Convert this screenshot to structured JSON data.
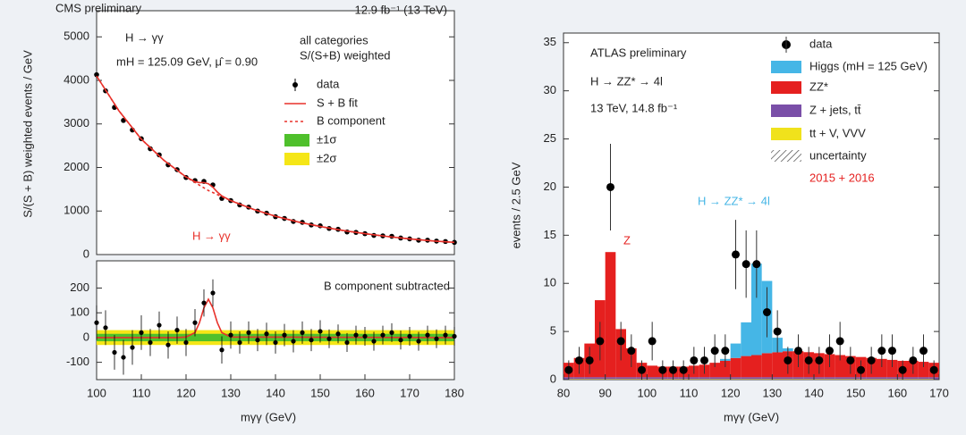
{
  "chart_data": [
    {
      "type": "scatter",
      "title": "CMS preliminary",
      "subtitle": "12.9 fb⁻¹ (13 TeV)",
      "annotations": [
        "H → γγ",
        "mH = 125.09 GeV, μ̂ = 0.90",
        "all categories",
        "S/(S+B) weighted",
        "H → γγ"
      ],
      "y_label": "S/(S + B) weighted events / GeV",
      "x": [
        100,
        102,
        104,
        106,
        108,
        110,
        112,
        114,
        116,
        118,
        120,
        122,
        124,
        126,
        128,
        130,
        132,
        134,
        136,
        138,
        140,
        142,
        144,
        146,
        148,
        150,
        152,
        154,
        156,
        158,
        160,
        162,
        164,
        166,
        168,
        170,
        172,
        174,
        176,
        178,
        180
      ],
      "series": [
        {
          "name": "data",
          "color": "#000000",
          "values": [
            4130,
            3760,
            3380,
            3080,
            2860,
            2660,
            2430,
            2290,
            2060,
            1950,
            1770,
            1700,
            1680,
            1600,
            1290,
            1240,
            1140,
            1090,
            1000,
            950,
            870,
            830,
            760,
            740,
            680,
            660,
            600,
            580,
            520,
            510,
            480,
            440,
            430,
            420,
            380,
            360,
            330,
            330,
            310,
            300,
            280
          ]
        },
        {
          "name": "S + B fit",
          "color": "#e8312a",
          "style": "solid",
          "x": [
            100,
            105,
            110,
            115,
            120,
            122,
            123,
            124,
            125,
            126,
            127,
            128,
            130,
            135,
            140,
            145,
            150,
            155,
            160,
            165,
            170,
            175,
            180
          ],
          "values": [
            4100,
            3300,
            2650,
            2170,
            1782,
            1673,
            1652,
            1654,
            1625,
            1546,
            1436,
            1347,
            1238,
            1040,
            880,
            750,
            645,
            555,
            480,
            415,
            360,
            315,
            280
          ]
        },
        {
          "name": "B component",
          "color": "#e8312a",
          "style": "dotted",
          "x": [
            100,
            105,
            110,
            115,
            120,
            125,
            130,
            135,
            140,
            145,
            150,
            155,
            160,
            165,
            170,
            175,
            180
          ],
          "values": [
            4100,
            3300,
            2650,
            2170,
            1780,
            1470,
            1240,
            1040,
            880,
            750,
            645,
            555,
            480,
            415,
            360,
            315,
            280
          ]
        }
      ],
      "xlim": [
        100,
        180
      ],
      "ylim": [
        0,
        5600
      ],
      "yticks": [
        0,
        1000,
        2000,
        3000,
        4000,
        5000
      ]
    },
    {
      "type": "residual",
      "annotation": "B component subtracted",
      "x_label": "mγγ (GeV)",
      "x": [
        100,
        102,
        104,
        106,
        108,
        110,
        112,
        114,
        116,
        118,
        120,
        122,
        124,
        126,
        128,
        130,
        132,
        134,
        136,
        138,
        140,
        142,
        144,
        146,
        148,
        150,
        152,
        154,
        156,
        158,
        160,
        162,
        164,
        166,
        168,
        170,
        172,
        174,
        176,
        178,
        180
      ],
      "values": [
        60,
        40,
        -60,
        -80,
        -40,
        20,
        -20,
        50,
        -30,
        30,
        -20,
        60,
        140,
        180,
        -50,
        10,
        -20,
        20,
        -10,
        15,
        -20,
        10,
        -15,
        20,
        -10,
        25,
        -5,
        15,
        -20,
        10,
        5,
        -15,
        10,
        20,
        -10,
        5,
        -15,
        10,
        -5,
        10,
        5
      ],
      "errors": [
        70,
        70,
        70,
        70,
        70,
        70,
        55,
        55,
        55,
        55,
        55,
        55,
        55,
        55,
        55,
        55,
        45,
        45,
        45,
        45,
        45,
        45,
        45,
        45,
        45,
        45,
        38,
        38,
        38,
        38,
        38,
        38,
        38,
        38,
        38,
        38,
        38,
        38,
        38,
        38,
        38
      ],
      "color": "#000000",
      "bands": [
        {
          "name": "±2σ",
          "color": "#f5e617",
          "halfwidth": 30
        },
        {
          "name": "±1σ",
          "color": "#4fc02c",
          "halfwidth": 15
        }
      ],
      "fit": {
        "color": "#e8312a",
        "x": [
          100,
          118,
          120,
          122,
          123,
          124,
          125,
          126,
          127,
          128,
          130,
          180
        ],
        "values": [
          0,
          0,
          2,
          20,
          60,
          120,
          155,
          120,
          60,
          20,
          2,
          0
        ]
      },
      "xlim": [
        100,
        180
      ],
      "xticks": [
        100,
        110,
        120,
        130,
        140,
        150,
        160,
        170,
        180
      ],
      "ylim": [
        -170,
        310
      ],
      "yticks": [
        -100,
        0,
        100,
        200
      ]
    },
    {
      "type": "histogram",
      "title": "ATLAS preliminary",
      "annotations": [
        "H → ZZ* → 4l",
        "13 TeV, 14.8 fb⁻¹",
        "2015 + 2016",
        "Z",
        "H → ZZ* → 4l"
      ],
      "x_label": "mγγ (GeV)",
      "y_label": "events / 2.5 GeV",
      "bins": [
        80,
        82.5,
        85,
        87.5,
        90,
        92.5,
        95,
        97.5,
        100,
        102.5,
        105,
        107.5,
        110,
        112.5,
        115,
        117.5,
        120,
        122.5,
        125,
        127.5,
        130,
        132.5,
        135,
        137.5,
        140,
        142.5,
        145,
        147.5,
        150,
        152.5,
        155,
        157.5,
        160,
        162.5,
        165,
        167.5,
        170
      ],
      "series": [
        {
          "name": "Higgs (mH = 125 GeV)",
          "color": "#45b6e6",
          "values": [
            0,
            0,
            0,
            0,
            0,
            0,
            0,
            0,
            0,
            0,
            0,
            0,
            0,
            0,
            0,
            0.2,
            1.5,
            3.5,
            9.5,
            7.5,
            1.5,
            0.3,
            0,
            0,
            0,
            0,
            0,
            0,
            0,
            0,
            0,
            0,
            0,
            0,
            0,
            0
          ]
        },
        {
          "name": "ZZ*",
          "color": "#e5201f",
          "values": [
            1.5,
            2,
            3.5,
            8,
            13,
            5,
            3,
            1.5,
            1.2,
            1.1,
            1.1,
            1.1,
            1.2,
            1.3,
            1.5,
            1.7,
            2,
            2.2,
            2.3,
            2.5,
            2.6,
            2.7,
            2.7,
            2.6,
            2.5,
            2.4,
            2.3,
            2.2,
            2.1,
            2,
            1.9,
            1.8,
            1.7,
            1.7,
            1.6,
            1.5
          ]
        },
        {
          "name": "Z + jets, tt̄",
          "color": "#7a4fa8",
          "values": [
            0.2,
            0.2,
            0.2,
            0.2,
            0.2,
            0.2,
            0.2,
            0.2,
            0.2,
            0.2,
            0.2,
            0.2,
            0.2,
            0.2,
            0.2,
            0.2,
            0.2,
            0.2,
            0.2,
            0.2,
            0.2,
            0.2,
            0.2,
            0.2,
            0.2,
            0.2,
            0.2,
            0.2,
            0.2,
            0.2,
            0.2,
            0.2,
            0.2,
            0.2,
            0.2,
            0.2
          ]
        },
        {
          "name": "tt + V, VVV",
          "color": "#f0e21c",
          "values": [
            0.05,
            0.05,
            0.05,
            0.05,
            0.05,
            0.05,
            0.05,
            0.05,
            0.05,
            0.05,
            0.05,
            0.05,
            0.05,
            0.05,
            0.05,
            0.05,
            0.05,
            0.05,
            0.05,
            0.05,
            0.05,
            0.05,
            0.05,
            0.05,
            0.05,
            0.05,
            0.05,
            0.05,
            0.05,
            0.05,
            0.05,
            0.05,
            0.05,
            0.05,
            0.05,
            0.05
          ]
        }
      ],
      "data": {
        "name": "data",
        "color": "#000000",
        "x": [
          81.25,
          83.75,
          86.25,
          88.75,
          91.25,
          93.75,
          96.25,
          98.75,
          101.25,
          103.75,
          106.25,
          108.75,
          111.25,
          113.75,
          116.25,
          118.75,
          121.25,
          123.75,
          126.25,
          128.75,
          131.25,
          133.75,
          136.25,
          138.75,
          141.25,
          143.75,
          146.25,
          148.75,
          151.25,
          153.75,
          156.25,
          158.75,
          161.25,
          163.75,
          166.25,
          168.75
        ],
        "values": [
          1,
          2,
          2,
          4,
          20,
          4,
          3,
          1,
          4,
          1,
          1,
          1,
          2,
          2,
          3,
          3,
          13,
          12,
          12,
          7,
          5,
          2,
          3,
          2,
          2,
          3,
          4,
          2,
          1,
          2,
          3,
          3,
          1,
          2,
          3,
          1
        ],
        "errors": [
          1,
          1.4,
          1.4,
          2,
          4.5,
          2,
          1.7,
          1,
          2,
          1,
          1,
          1,
          1.4,
          1.4,
          1.7,
          1.7,
          3.6,
          3.5,
          3.5,
          2.6,
          2.2,
          1.4,
          1.7,
          1.4,
          1.4,
          1.7,
          2,
          1.4,
          1,
          1.4,
          1.7,
          1.7,
          1,
          1.4,
          1.7,
          1
        ]
      },
      "uncertainty": "uncertainty",
      "xlim": [
        80,
        170
      ],
      "xticks": [
        80,
        90,
        100,
        110,
        120,
        130,
        140,
        150,
        160,
        170
      ],
      "ylim": [
        0,
        36
      ],
      "yticks": [
        0,
        5,
        10,
        15,
        20,
        25,
        30,
        35
      ]
    }
  ]
}
